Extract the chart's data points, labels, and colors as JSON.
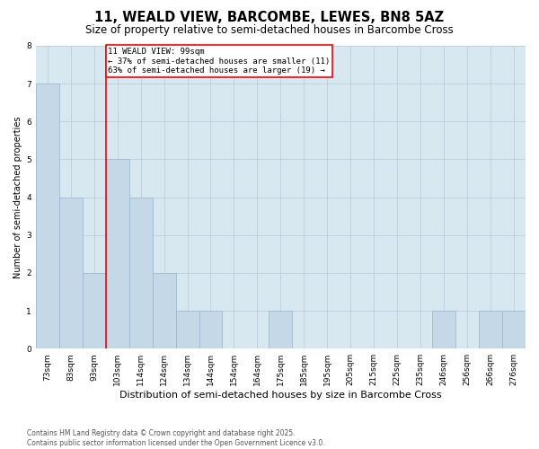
{
  "title": "11, WEALD VIEW, BARCOMBE, LEWES, BN8 5AZ",
  "subtitle": "Size of property relative to semi-detached houses in Barcombe Cross",
  "xlabel": "Distribution of semi-detached houses by size in Barcombe Cross",
  "ylabel": "Number of semi-detached properties",
  "categories": [
    "73sqm",
    "83sqm",
    "93sqm",
    "103sqm",
    "114sqm",
    "124sqm",
    "134sqm",
    "144sqm",
    "154sqm",
    "164sqm",
    "175sqm",
    "185sqm",
    "195sqm",
    "205sqm",
    "215sqm",
    "225sqm",
    "235sqm",
    "246sqm",
    "256sqm",
    "266sqm",
    "276sqm"
  ],
  "values": [
    7,
    4,
    2,
    5,
    4,
    2,
    1,
    1,
    0,
    0,
    1,
    0,
    0,
    0,
    0,
    0,
    0,
    1,
    0,
    1,
    1
  ],
  "bar_color": "#c5d8e8",
  "bar_edge_color": "#9ab5cc",
  "grid_color": "#b8c8d8",
  "background_color": "#d8e8f0",
  "property_line_x": 2.5,
  "property_label": "11 WEALD VIEW: 99sqm",
  "annotation_smaller": "← 37% of semi-detached houses are smaller (11)",
  "annotation_larger": "63% of semi-detached houses are larger (19) →",
  "ylim": [
    0,
    8
  ],
  "yticks": [
    0,
    1,
    2,
    3,
    4,
    5,
    6,
    7,
    8
  ],
  "footer_line1": "Contains HM Land Registry data © Crown copyright and database right 2025.",
  "footer_line2": "Contains public sector information licensed under the Open Government Licence v3.0.",
  "title_fontsize": 10.5,
  "subtitle_fontsize": 8.5,
  "xlabel_fontsize": 8,
  "ylabel_fontsize": 7,
  "tick_fontsize": 6.5,
  "footer_fontsize": 5.5,
  "annotation_fontsize": 6.5
}
